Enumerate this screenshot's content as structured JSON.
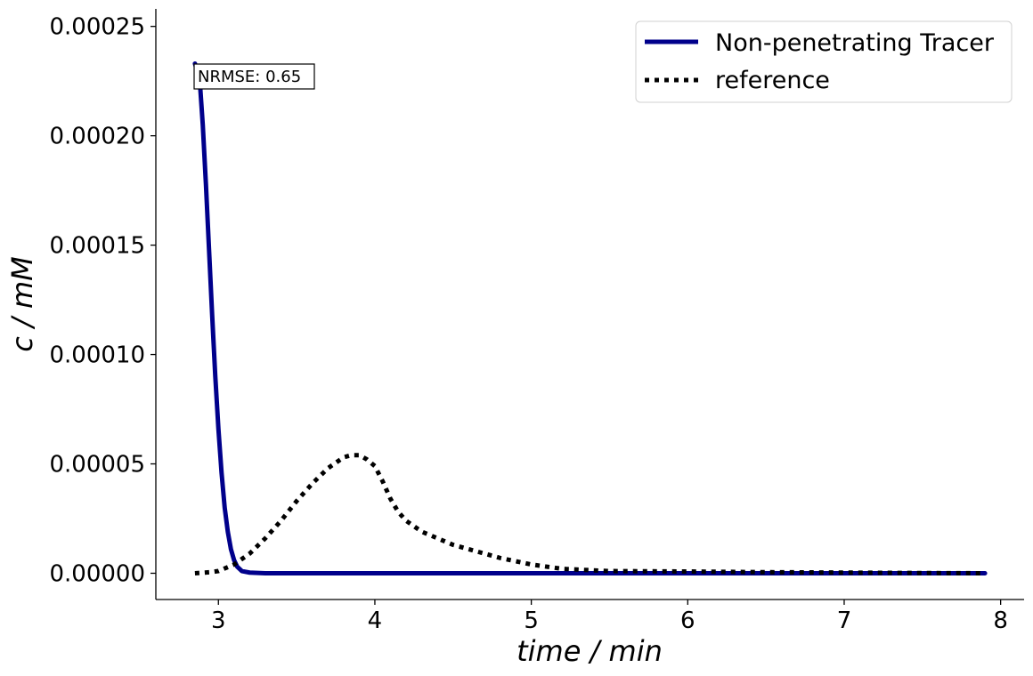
{
  "chart_data": {
    "type": "line",
    "xlabel": "time / min",
    "ylabel": "c / mM",
    "xlim": [
      2.6,
      8.15
    ],
    "ylim": [
      -1.2e-05,
      0.000258
    ],
    "x_ticks": [
      3,
      4,
      5,
      6,
      7,
      8
    ],
    "x_tick_labels": [
      "3",
      "4",
      "5",
      "6",
      "7",
      "8"
    ],
    "y_ticks": [
      0,
      5e-05,
      0.0001,
      0.00015,
      0.0002,
      0.00025
    ],
    "y_tick_labels": [
      "0.00000",
      "0.00005",
      "0.00010",
      "0.00015",
      "0.00020",
      "0.00025"
    ],
    "grid": false,
    "legend_position": "top-right",
    "annotation": "NRMSE: 0.65",
    "series": [
      {
        "name": "Non-penetrating Tracer",
        "color": "#00008B",
        "style": "solid",
        "x": [
          2.85,
          2.88,
          2.9,
          2.92,
          2.94,
          2.96,
          2.98,
          3.0,
          3.02,
          3.04,
          3.06,
          3.08,
          3.1,
          3.12,
          3.15,
          3.2,
          3.3,
          3.5,
          4.0,
          5.0,
          6.0,
          7.0,
          7.9
        ],
        "y": [
          0.000233,
          0.000226,
          0.000205,
          0.000178,
          0.000148,
          0.000118,
          9e-05,
          6.6e-05,
          4.6e-05,
          3e-05,
          1.9e-05,
          1.1e-05,
          6e-06,
          3e-06,
          1e-06,
          3e-07,
          0.0,
          0.0,
          0.0,
          0.0,
          0.0,
          0.0,
          0.0
        ]
      },
      {
        "name": "reference",
        "color": "#000000",
        "style": "dotted",
        "x": [
          2.85,
          2.95,
          3.0,
          3.1,
          3.2,
          3.3,
          3.4,
          3.5,
          3.6,
          3.7,
          3.8,
          3.85,
          3.9,
          3.95,
          4.0,
          4.05,
          4.1,
          4.15,
          4.2,
          4.3,
          4.4,
          4.5,
          4.6,
          4.8,
          5.0,
          5.2,
          5.5,
          6.0,
          6.5,
          7.0,
          7.5,
          7.9
        ],
        "y": [
          0.0,
          5e-07,
          1e-06,
          4e-06,
          9e-06,
          1.6e-05,
          2.4e-05,
          3.3e-05,
          4.1e-05,
          4.8e-05,
          5.3e-05,
          5.4e-05,
          5.4e-05,
          5.2e-05,
          4.9e-05,
          4.2e-05,
          3.4e-05,
          2.8e-05,
          2.4e-05,
          1.9e-05,
          1.6e-05,
          1.3e-05,
          1.1e-05,
          7e-06,
          4e-06,
          2e-06,
          1e-06,
          8e-07,
          5e-07,
          3e-07,
          1e-07,
          0.0
        ]
      }
    ]
  }
}
